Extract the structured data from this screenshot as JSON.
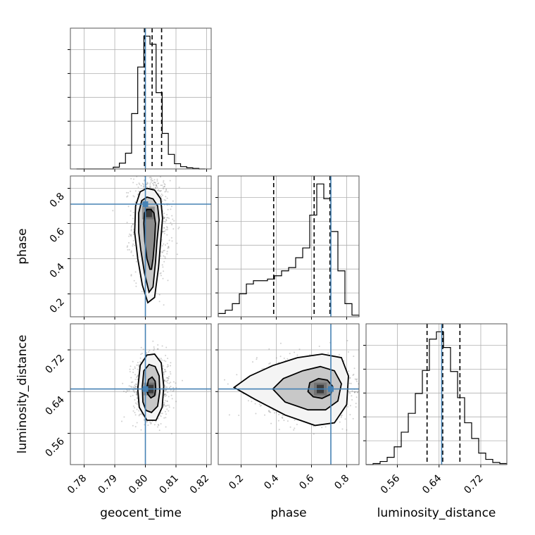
{
  "chart_data": {
    "type": "corner",
    "parameters": [
      "geocent_time",
      "phase",
      "luminosity_distance"
    ],
    "axis_labels": {
      "geocent_time": "geocent_time",
      "phase": "phase",
      "luminosity_distance": "luminosity_distance"
    },
    "ranges": {
      "geocent_time": [
        0.7755,
        0.8215
      ],
      "phase": [
        0.07,
        0.87
      ],
      "luminosity_distance": [
        0.5,
        0.77
      ]
    },
    "ticks": {
      "geocent_time": [
        0.78,
        0.79,
        0.8,
        0.81,
        0.82
      ],
      "phase": [
        0.2,
        0.4,
        0.6,
        0.8
      ],
      "luminosity_distance": [
        0.56,
        0.64,
        0.72
      ]
    },
    "tick_labels": {
      "geocent_time": [
        "0.78",
        "0.79",
        "0.80",
        "0.81",
        "0.82"
      ],
      "phase": [
        "0.2",
        "0.4",
        "0.6",
        "0.8"
      ],
      "luminosity_distance": [
        "0.56",
        "0.64",
        "0.72"
      ]
    },
    "truths": {
      "geocent_time": 0.8,
      "phase": 0.71,
      "luminosity_distance": 0.645
    },
    "quantiles": {
      "geocent_time": [
        0.7997,
        0.8022,
        0.8053
      ],
      "phase": [
        0.385,
        0.615,
        0.705
      ],
      "luminosity_distance": [
        0.617,
        0.647,
        0.68
      ]
    },
    "histograms": {
      "geocent_time": {
        "edges": [
          0.7775,
          0.7795,
          0.7815,
          0.7835,
          0.7855,
          0.7875,
          0.7895,
          0.7915,
          0.7935,
          0.7955,
          0.7975,
          0.7995,
          0.8015,
          0.8035,
          0.8055,
          0.8075,
          0.8095,
          0.8115,
          0.8135,
          0.8155,
          0.8175,
          0.8195
        ],
        "counts": [
          0,
          0,
          0,
          0,
          0,
          0,
          3,
          10,
          27,
          95,
          175,
          228,
          214,
          131,
          61,
          25,
          9,
          4,
          2,
          1,
          0
        ]
      },
      "phase": {
        "edges": [
          0.07,
          0.11,
          0.15,
          0.19,
          0.23,
          0.27,
          0.31,
          0.35,
          0.39,
          0.43,
          0.47,
          0.51,
          0.55,
          0.59,
          0.63,
          0.67,
          0.71,
          0.75,
          0.79,
          0.83,
          0.87
        ],
        "counts": [
          2,
          4,
          8,
          14,
          20,
          22,
          22,
          23,
          25,
          28,
          30,
          36,
          42,
          62,
          81,
          72,
          52,
          28,
          8,
          1
        ]
      },
      "luminosity_distance": {
        "edges": [
          0.5,
          0.5135,
          0.527,
          0.5405,
          0.554,
          0.5675,
          0.581,
          0.5945,
          0.608,
          0.6215,
          0.635,
          0.6485,
          0.662,
          0.6755,
          0.689,
          0.7025,
          0.716,
          0.7295,
          0.743,
          0.7565,
          0.77
        ],
        "counts": [
          0,
          1,
          3,
          7,
          17,
          31,
          49,
          68,
          90,
          120,
          127,
          112,
          89,
          64,
          40,
          25,
          11,
          5,
          2,
          1
        ]
      }
    },
    "joint_2d": [
      {
        "x": "geocent_time",
        "y": "phase",
        "mean": [
          0.8018,
          0.6
        ],
        "sd": [
          0.0028,
          0.14
        ],
        "peak": [
          0.801,
          0.66
        ],
        "contours": [
          [
            [
              0.8015,
              0.34
            ],
            [
              0.8005,
              0.4
            ],
            [
              0.7998,
              0.5
            ],
            [
              0.7995,
              0.6
            ],
            [
              0.7997,
              0.66
            ],
            [
              0.8005,
              0.68
            ],
            [
              0.8018,
              0.68
            ],
            [
              0.8028,
              0.66
            ],
            [
              0.8033,
              0.6
            ],
            [
              0.803,
              0.5
            ],
            [
              0.8025,
              0.4
            ],
            [
              0.802,
              0.34
            ]
          ],
          [
            [
              0.8012,
              0.21
            ],
            [
              0.7997,
              0.32
            ],
            [
              0.7985,
              0.45
            ],
            [
              0.7978,
              0.55
            ],
            [
              0.7978,
              0.66
            ],
            [
              0.7988,
              0.73
            ],
            [
              0.8005,
              0.75
            ],
            [
              0.8025,
              0.74
            ],
            [
              0.804,
              0.7
            ],
            [
              0.8045,
              0.62
            ],
            [
              0.8038,
              0.5
            ],
            [
              0.8033,
              0.38
            ],
            [
              0.8025,
              0.24
            ]
          ],
          [
            [
              0.8008,
              0.15
            ],
            [
              0.799,
              0.25
            ],
            [
              0.7975,
              0.4
            ],
            [
              0.7965,
              0.55
            ],
            [
              0.7968,
              0.7
            ],
            [
              0.7983,
              0.78
            ],
            [
              0.8005,
              0.8
            ],
            [
              0.803,
              0.79
            ],
            [
              0.805,
              0.74
            ],
            [
              0.8056,
              0.63
            ],
            [
              0.805,
              0.5
            ],
            [
              0.8043,
              0.35
            ],
            [
              0.803,
              0.18
            ]
          ]
        ]
      },
      {
        "x": "geocent_time",
        "y": "luminosity_distance",
        "mean": [
          0.8022,
          0.648
        ],
        "sd": [
          0.0028,
          0.028
        ],
        "peak": [
          0.8015,
          0.645
        ],
        "contours": [
          [
            [
              0.8008,
              0.635
            ],
            [
              0.8006,
              0.65
            ],
            [
              0.801,
              0.663
            ],
            [
              0.8022,
              0.668
            ],
            [
              0.8032,
              0.66
            ],
            [
              0.8034,
              0.645
            ],
            [
              0.803,
              0.632
            ],
            [
              0.8018,
              0.628
            ]
          ],
          [
            [
              0.7992,
              0.62
            ],
            [
              0.799,
              0.65
            ],
            [
              0.7995,
              0.68
            ],
            [
              0.8012,
              0.692
            ],
            [
              0.8032,
              0.688
            ],
            [
              0.8045,
              0.67
            ],
            [
              0.8047,
              0.64
            ],
            [
              0.804,
              0.612
            ],
            [
              0.802,
              0.6
            ],
            [
              0.8002,
              0.604
            ]
          ],
          [
            [
              0.798,
              0.61
            ],
            [
              0.7975,
              0.645
            ],
            [
              0.7983,
              0.69
            ],
            [
              0.8005,
              0.71
            ],
            [
              0.803,
              0.712
            ],
            [
              0.8052,
              0.695
            ],
            [
              0.806,
              0.65
            ],
            [
              0.8055,
              0.61
            ],
            [
              0.8035,
              0.585
            ],
            [
              0.8005,
              0.585
            ]
          ]
        ]
      },
      {
        "x": "phase",
        "y": "luminosity_distance",
        "mean": [
          0.6,
          0.648
        ],
        "sd": [
          0.14,
          0.028
        ],
        "peak": [
          0.65,
          0.645
        ],
        "contours": [
          [
            [
              0.58,
              0.64
            ],
            [
              0.59,
              0.657
            ],
            [
              0.64,
              0.665
            ],
            [
              0.69,
              0.662
            ],
            [
              0.72,
              0.65
            ],
            [
              0.71,
              0.635
            ],
            [
              0.66,
              0.627
            ],
            [
              0.61,
              0.63
            ]
          ],
          [
            [
              0.38,
              0.645
            ],
            [
              0.44,
              0.665
            ],
            [
              0.55,
              0.68
            ],
            [
              0.65,
              0.688
            ],
            [
              0.73,
              0.68
            ],
            [
              0.77,
              0.655
            ],
            [
              0.75,
              0.622
            ],
            [
              0.68,
              0.605
            ],
            [
              0.58,
              0.605
            ],
            [
              0.45,
              0.62
            ]
          ],
          [
            [
              0.16,
              0.648
            ],
            [
              0.25,
              0.67
            ],
            [
              0.38,
              0.69
            ],
            [
              0.52,
              0.705
            ],
            [
              0.66,
              0.712
            ],
            [
              0.77,
              0.705
            ],
            [
              0.81,
              0.67
            ],
            [
              0.8,
              0.615
            ],
            [
              0.73,
              0.58
            ],
            [
              0.62,
              0.575
            ],
            [
              0.45,
              0.595
            ],
            [
              0.28,
              0.625
            ]
          ]
        ]
      }
    ]
  }
}
